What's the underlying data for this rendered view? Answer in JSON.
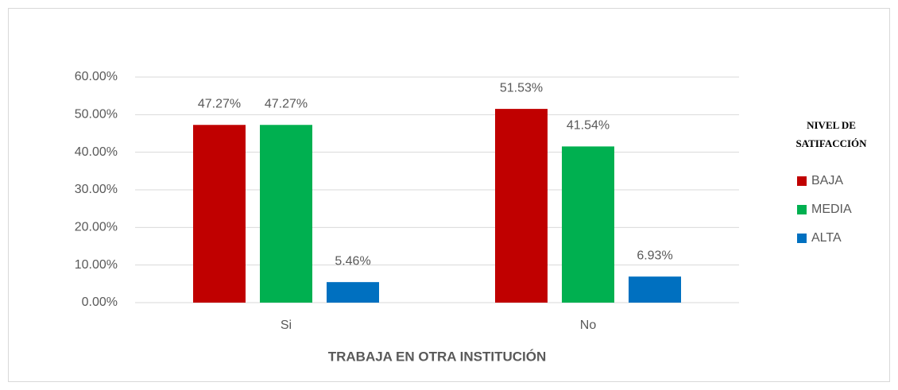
{
  "chart_data": {
    "type": "bar",
    "x_label": "TRABAJA EN OTRA INSTITUCIÓN",
    "legend_title": "NIVEL DE SATIFACCIÓN",
    "legend_position": "right",
    "grid": true,
    "categories": [
      "Si",
      "No"
    ],
    "series": [
      {
        "name": "BAJA",
        "color": "#c00000",
        "values": [
          47.27,
          51.53
        ],
        "value_labels": [
          "47.27%",
          "51.53%"
        ]
      },
      {
        "name": "MEDIA",
        "color": "#00b050",
        "values": [
          47.27,
          41.54
        ],
        "value_labels": [
          "47.27%",
          "41.54%"
        ]
      },
      {
        "name": "ALTA",
        "color": "#0070c0",
        "values": [
          5.46,
          6.93
        ],
        "value_labels": [
          "5.46%",
          "6.93%"
        ]
      }
    ],
    "ylim": [
      0,
      60
    ],
    "yticks": [
      {
        "value": 0,
        "label": "0.00%"
      },
      {
        "value": 10,
        "label": "10.00%"
      },
      {
        "value": 20,
        "label": "20.00%"
      },
      {
        "value": 30,
        "label": "30.00%"
      },
      {
        "value": 40,
        "label": "40.00%"
      },
      {
        "value": 50,
        "label": "50.00%"
      },
      {
        "value": 60,
        "label": "60.00%"
      }
    ]
  }
}
